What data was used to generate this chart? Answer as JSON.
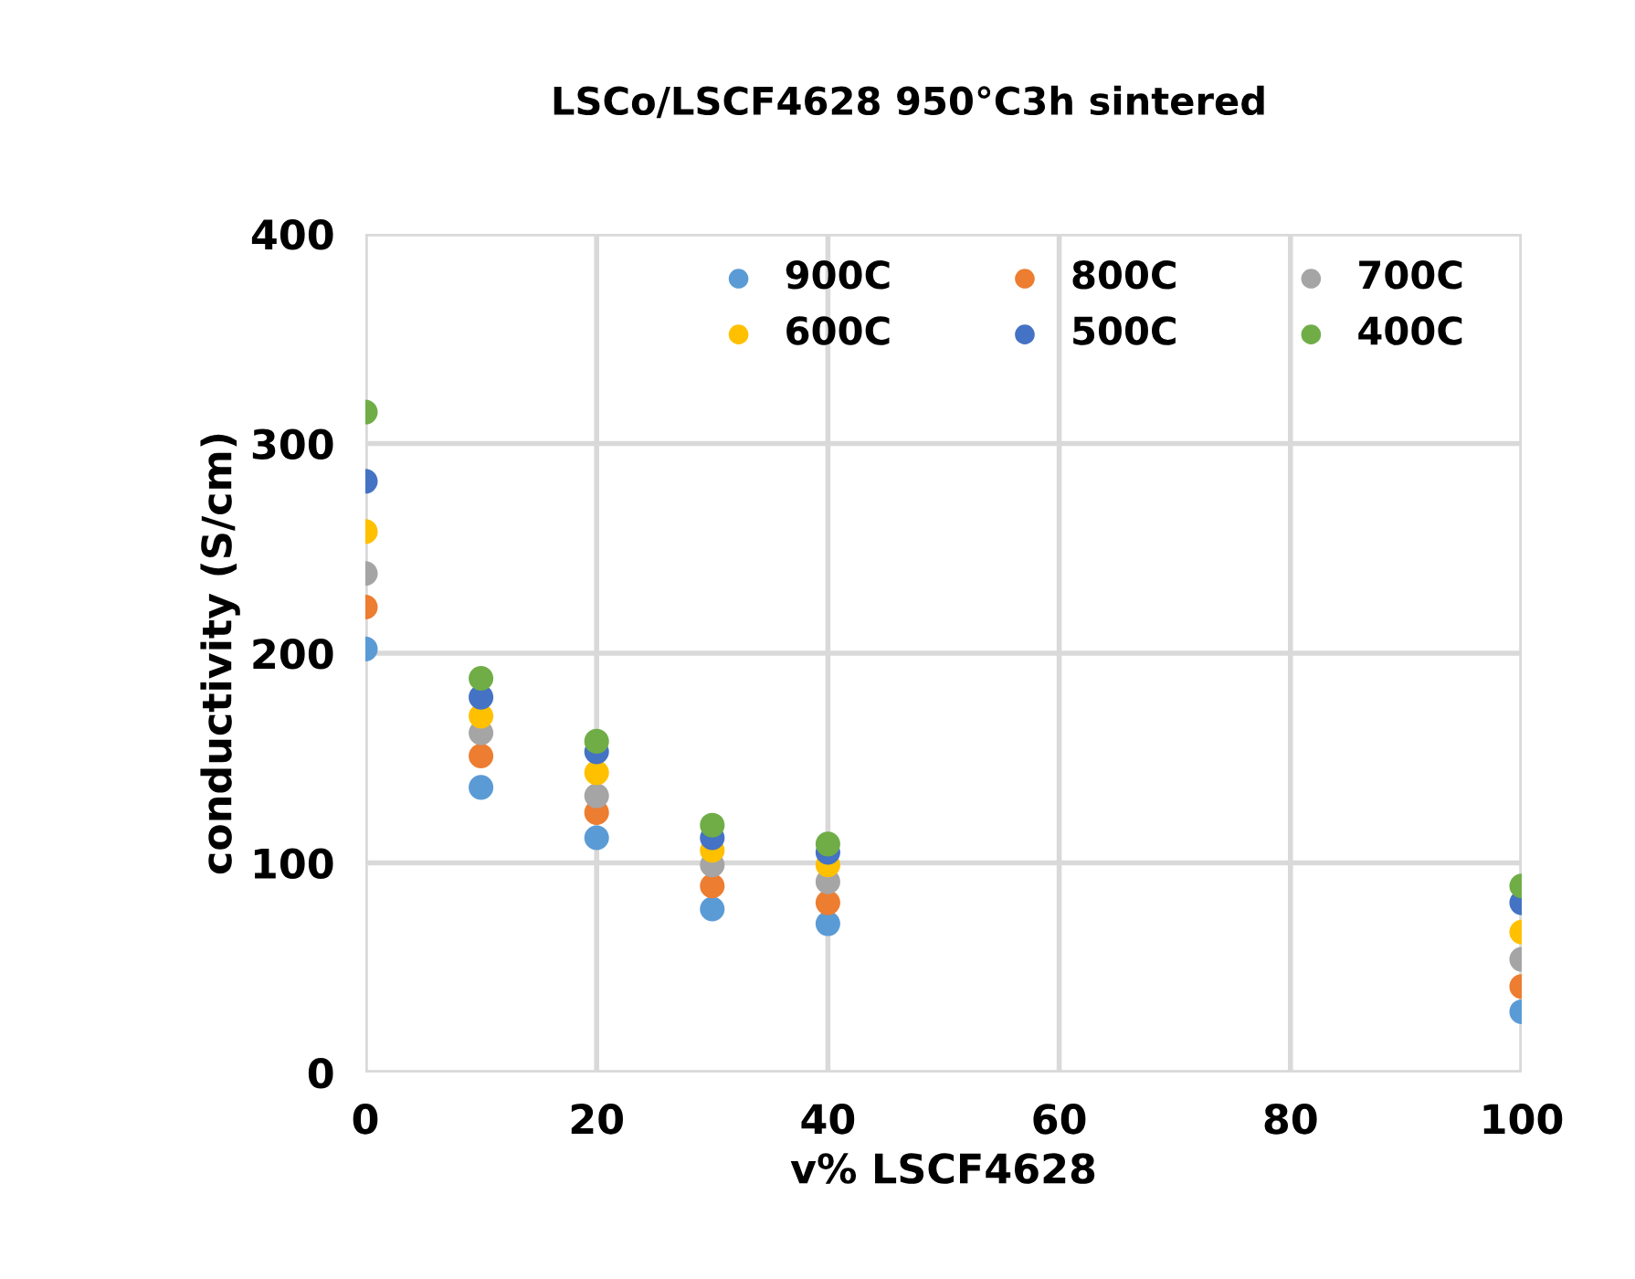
{
  "chart_data": {
    "type": "scatter",
    "title": "LSCo/LSCF4628 950°C3h sintered",
    "xlabel": "v% LSCF4628",
    "ylabel": "conductivity (S/cm)",
    "x": [
      0,
      10,
      20,
      30,
      40,
      100
    ],
    "series": [
      {
        "name": "900C",
        "color": "#5b9bd5",
        "values": [
          202,
          136,
          112,
          78,
          71,
          29
        ]
      },
      {
        "name": "800C",
        "color": "#ed7d31",
        "values": [
          222,
          151,
          124,
          89,
          81,
          41
        ]
      },
      {
        "name": "700C",
        "color": "#a5a5a5",
        "values": [
          238,
          162,
          132,
          99,
          91,
          54
        ]
      },
      {
        "name": "600C",
        "color": "#ffc000",
        "values": [
          258,
          170,
          143,
          106,
          99,
          67
        ]
      },
      {
        "name": "500C",
        "color": "#4472c4",
        "values": [
          282,
          179,
          153,
          112,
          105,
          81
        ]
      },
      {
        "name": "400C",
        "color": "#70ad47",
        "values": [
          315,
          188,
          158,
          118,
          109,
          89
        ]
      }
    ],
    "xlim": [
      0,
      100
    ],
    "xticks": [
      0,
      20,
      40,
      60,
      80,
      100
    ],
    "ylim": [
      0,
      400
    ],
    "yticks": [
      0,
      100,
      200,
      300,
      400
    ],
    "grid": true,
    "legend": "top",
    "marker": "circle"
  }
}
